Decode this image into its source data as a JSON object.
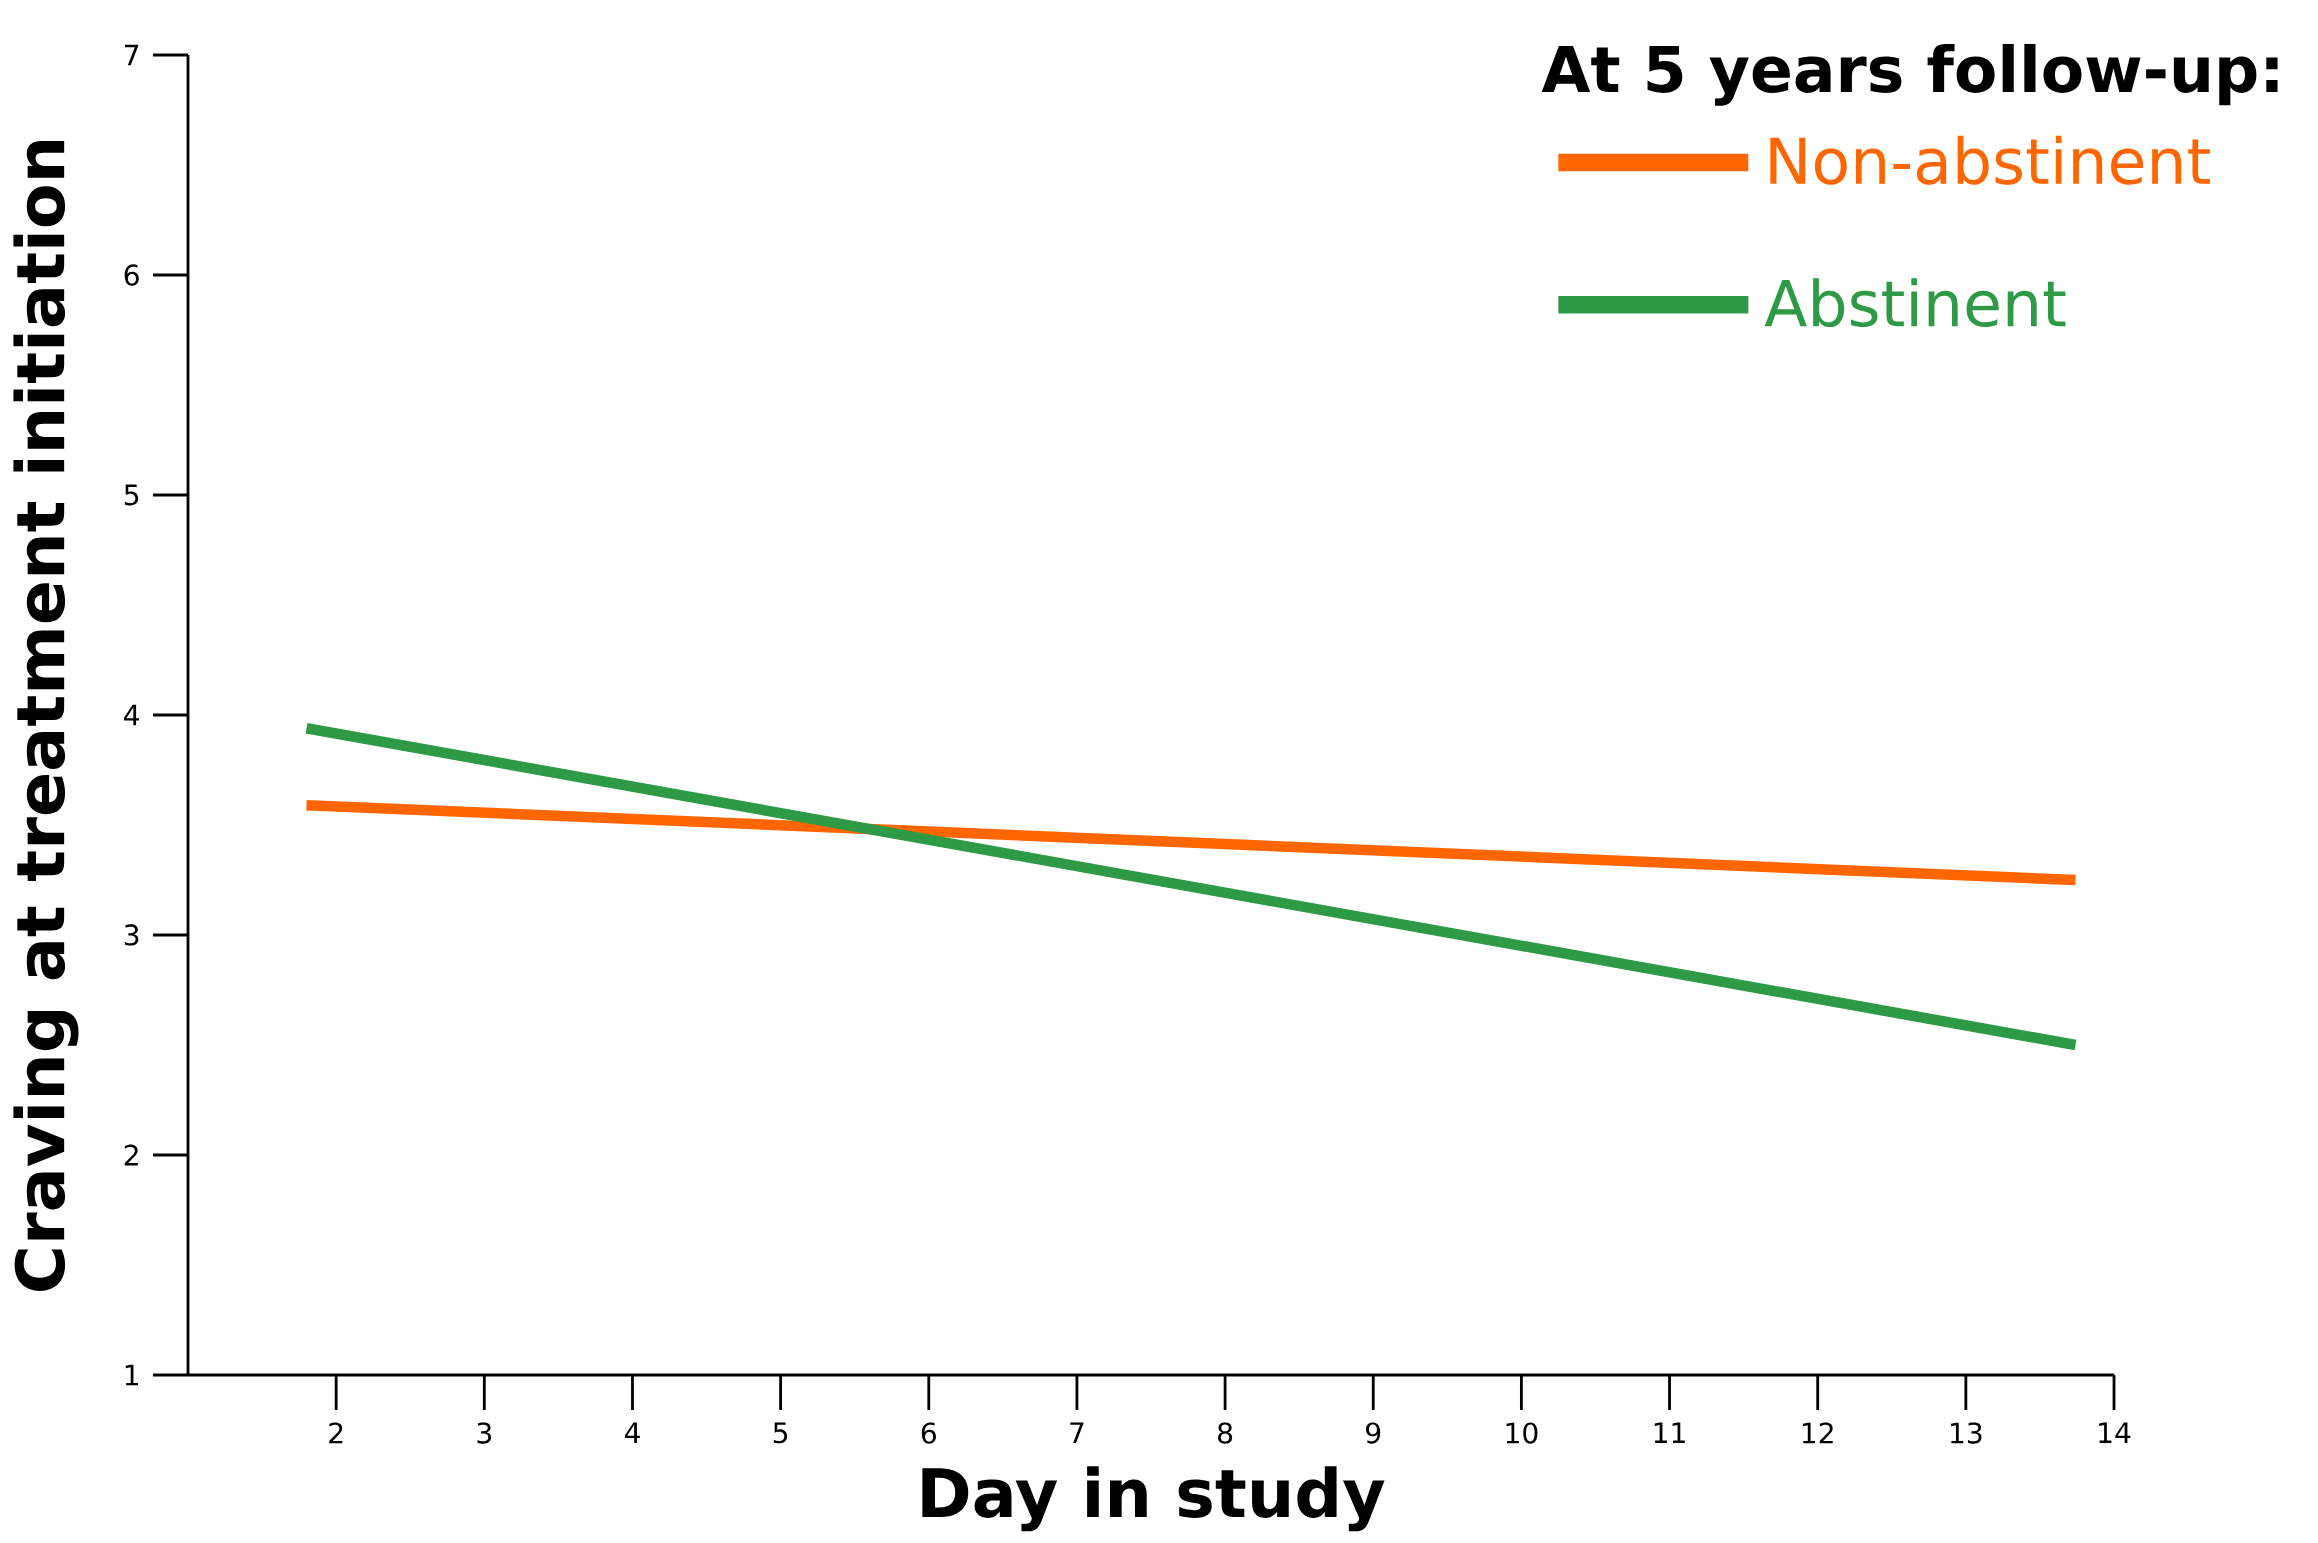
{
  "chart_data": {
    "type": "line",
    "xlabel": "Day in study",
    "ylabel": "Craving at treatment initiation",
    "legend_title": "At 5 years follow-up:",
    "xlim": [
      1,
      14
    ],
    "xticks": [
      2,
      3,
      4,
      5,
      6,
      7,
      8,
      9,
      10,
      11,
      12,
      13,
      14
    ],
    "ylim": [
      1,
      7
    ],
    "yticks": [
      1,
      2,
      3,
      4,
      5,
      6,
      7
    ],
    "legend": "top right",
    "grid": false,
    "marker": "none",
    "line_style": "solid",
    "x": [
      1.8,
      13.74
    ],
    "series": [
      {
        "name": "Non-abstinent",
        "color": "#ff6600",
        "values": [
          3.59,
          3.25
        ]
      },
      {
        "name": "Abstinent",
        "color": "#2e9a45",
        "values": [
          3.94,
          2.5
        ]
      }
    ]
  }
}
